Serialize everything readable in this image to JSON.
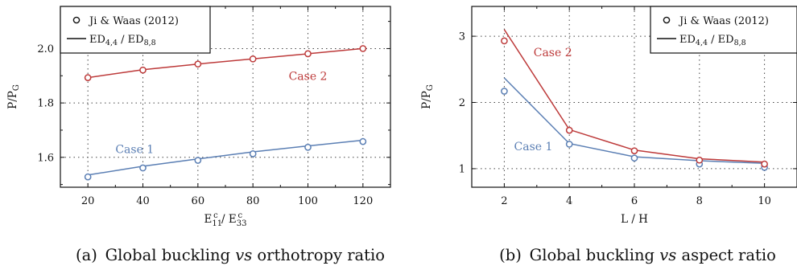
{
  "chart_data": [
    {
      "type": "line",
      "caption": "(a)  Global buckling vs orthotropy ratio",
      "caption_parts": {
        "label": "(a)",
        "pre": "Global buckling ",
        "vs": "vs",
        "post": " orthotropy ratio"
      },
      "xlabel": {
        "main": "E",
        "sub1": "11",
        "sup1": "c",
        "sep": " / E",
        "sub2": "33",
        "sup2": "c"
      },
      "ylabel": {
        "main": "P/P",
        "sub": "G"
      },
      "xlim": [
        10,
        130
      ],
      "ylim": [
        1.49,
        2.155
      ],
      "xticks": [
        20,
        40,
        60,
        80,
        100,
        120
      ],
      "xtick_labels": [
        "20",
        "40",
        "60",
        "80",
        "100",
        "120"
      ],
      "xminor": [
        10,
        30,
        50,
        70,
        90,
        110,
        130
      ],
      "yticks": [
        1.6,
        1.8,
        2.0
      ],
      "ytick_labels": [
        "1.6",
        "1.8",
        "2.0"
      ],
      "yminor": [
        1.5,
        1.7,
        1.9,
        2.1
      ],
      "grid": true,
      "legend": {
        "position": "top-left",
        "marker_label": "Ji & Waas (2012)",
        "line_label": {
          "a": "ED",
          "a_sub": "4,4",
          "sep": " / ED",
          "b_sub": "8,8"
        }
      },
      "series": [
        {
          "name": "Case 1",
          "color": "#5b7fb4",
          "x": [
            20,
            40,
            60,
            80,
            100,
            120
          ],
          "line": [
            1.535,
            1.567,
            1.594,
            1.62,
            1.642,
            1.663
          ],
          "markers": [
            1.528,
            1.561,
            1.589,
            1.613,
            1.637,
            1.658
          ],
          "label_at": [
            30,
            1.615
          ]
        },
        {
          "name": "Case 2",
          "color": "#bd3a3a",
          "x": [
            20,
            40,
            60,
            80,
            100,
            120
          ],
          "line": [
            1.893,
            1.922,
            1.943,
            1.962,
            1.981,
            2.0
          ],
          "markers": [
            1.893,
            1.921,
            1.943,
            1.962,
            1.981,
            2.0
          ],
          "label_at": [
            93,
            1.885
          ]
        }
      ]
    },
    {
      "type": "line",
      "caption": "(b)  Global buckling vs aspect ratio",
      "caption_parts": {
        "label": "(b)",
        "pre": "Global buckling ",
        "vs": "vs",
        "post": " aspect ratio"
      },
      "xlabel": {
        "main": "L / H"
      },
      "ylabel": {
        "main": "P/P",
        "sub": "G"
      },
      "xlim": [
        1,
        11
      ],
      "ylim": [
        0.72,
        3.45
      ],
      "xticks": [
        2,
        4,
        6,
        8,
        10
      ],
      "xtick_labels": [
        "2",
        "4",
        "6",
        "8",
        "10"
      ],
      "xminor": [
        1,
        3,
        5,
        7,
        9,
        11
      ],
      "yticks": [
        1,
        2,
        3
      ],
      "ytick_labels": [
        "1",
        "2",
        "3"
      ],
      "yminor": [],
      "grid": true,
      "legend": {
        "position": "top-right",
        "marker_label": "Ji & Waas (2012)",
        "line_label": {
          "a": "ED",
          "a_sub": "4,4",
          "sep": " / ED",
          "b_sub": "8,8"
        }
      },
      "series": [
        {
          "name": "Case 1",
          "color": "#5b7fb4",
          "x": [
            2,
            4,
            6,
            8,
            10
          ],
          "line": [
            2.37,
            1.38,
            1.18,
            1.12,
            1.08
          ],
          "markers": [
            2.17,
            1.37,
            1.16,
            1.07,
            1.02
          ],
          "label_at": [
            2.3,
            1.28
          ]
        },
        {
          "name": "Case 2",
          "color": "#bd3a3a",
          "x": [
            2,
            4,
            6,
            8,
            10
          ],
          "line": [
            3.1,
            1.59,
            1.28,
            1.15,
            1.1
          ],
          "markers": [
            2.93,
            1.58,
            1.27,
            1.13,
            1.07
          ],
          "label_at": [
            2.9,
            2.7
          ]
        }
      ]
    }
  ]
}
